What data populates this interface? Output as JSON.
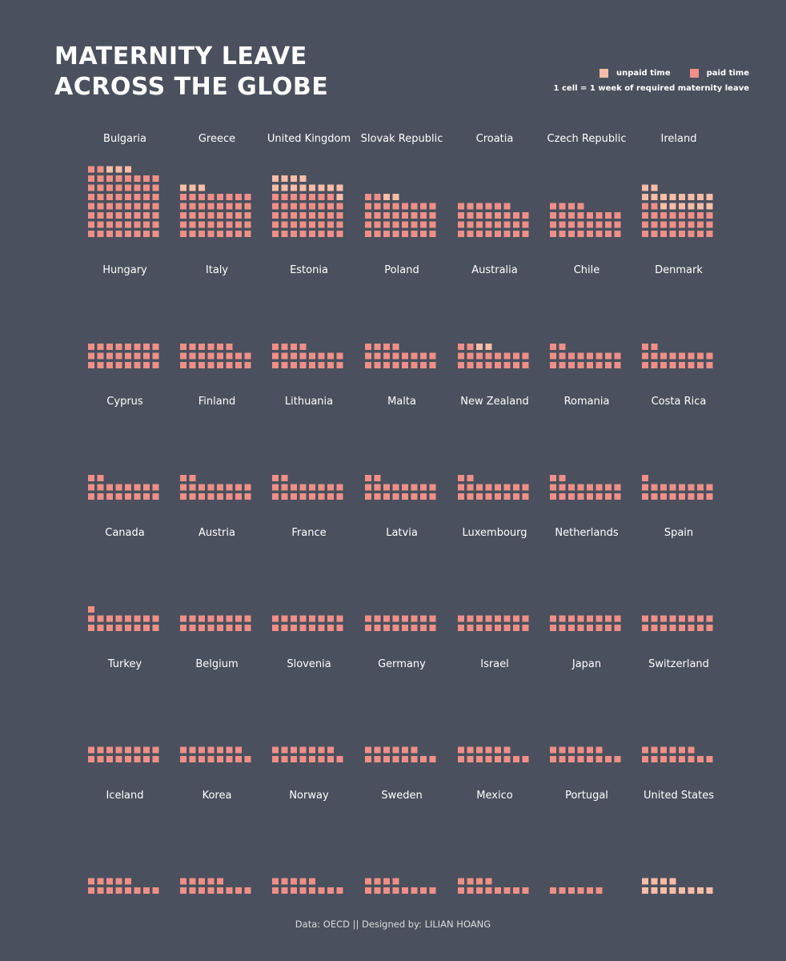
{
  "title": {
    "line1": "MATERNITY LEAVE",
    "line2": "ACROSS THE GLOBE"
  },
  "legend": {
    "unpaid_label": "unpaid time",
    "paid_label": "paid time",
    "note": "1 cell = 1 week of required maternity leave"
  },
  "colors": {
    "background": "#4a505d",
    "unpaid": "#f9bca6",
    "paid": "#ef8f87"
  },
  "chart_data": {
    "type": "waffle",
    "unit": "1 cell = 1 week of required maternity leave",
    "countries": [
      {
        "name": "Bulgaria",
        "paid": 58,
        "unpaid": 3
      },
      {
        "name": "Greece",
        "paid": 40,
        "unpaid": 3
      },
      {
        "name": "United Kingdom",
        "paid": 39,
        "unpaid": 13
      },
      {
        "name": "Slovak Republic",
        "paid": 34,
        "unpaid": 2
      },
      {
        "name": "Croatia",
        "paid": 30,
        "unpaid": 0
      },
      {
        "name": "Czech Republic",
        "paid": 28,
        "unpaid": 0
      },
      {
        "name": "Ireland",
        "paid": 26,
        "unpaid": 16
      },
      {
        "name": "Hungary",
        "paid": 24,
        "unpaid": 0
      },
      {
        "name": "Italy",
        "paid": 22,
        "unpaid": 0
      },
      {
        "name": "Estonia",
        "paid": 20,
        "unpaid": 0
      },
      {
        "name": "Poland",
        "paid": 20,
        "unpaid": 0
      },
      {
        "name": "Australia",
        "paid": 18,
        "unpaid": 2
      },
      {
        "name": "Chile",
        "paid": 18,
        "unpaid": 0
      },
      {
        "name": "Denmark",
        "paid": 18,
        "unpaid": 0
      },
      {
        "name": "Cyprus",
        "paid": 18,
        "unpaid": 0
      },
      {
        "name": "Finland",
        "paid": 18,
        "unpaid": 0
      },
      {
        "name": "Lithuania",
        "paid": 18,
        "unpaid": 0
      },
      {
        "name": "Malta",
        "paid": 18,
        "unpaid": 0
      },
      {
        "name": "New Zealand",
        "paid": 18,
        "unpaid": 0
      },
      {
        "name": "Romania",
        "paid": 18,
        "unpaid": 0
      },
      {
        "name": "Costa Rica",
        "paid": 17,
        "unpaid": 0
      },
      {
        "name": "Canada",
        "paid": 17,
        "unpaid": 0
      },
      {
        "name": "Austria",
        "paid": 16,
        "unpaid": 0
      },
      {
        "name": "France",
        "paid": 16,
        "unpaid": 0
      },
      {
        "name": "Latvia",
        "paid": 16,
        "unpaid": 0
      },
      {
        "name": "Luxembourg",
        "paid": 16,
        "unpaid": 0
      },
      {
        "name": "Netherlands",
        "paid": 16,
        "unpaid": 0
      },
      {
        "name": "Spain",
        "paid": 16,
        "unpaid": 0
      },
      {
        "name": "Turkey",
        "paid": 16,
        "unpaid": 0
      },
      {
        "name": "Belgium",
        "paid": 15,
        "unpaid": 0
      },
      {
        "name": "Slovenia",
        "paid": 15,
        "unpaid": 0
      },
      {
        "name": "Germany",
        "paid": 14,
        "unpaid": 0
      },
      {
        "name": "Israel",
        "paid": 14,
        "unpaid": 0
      },
      {
        "name": "Japan",
        "paid": 14,
        "unpaid": 0
      },
      {
        "name": "Switzerland",
        "paid": 14,
        "unpaid": 0
      },
      {
        "name": "Iceland",
        "paid": 13,
        "unpaid": 0
      },
      {
        "name": "Korea",
        "paid": 13,
        "unpaid": 0
      },
      {
        "name": "Norway",
        "paid": 13,
        "unpaid": 0
      },
      {
        "name": "Sweden",
        "paid": 12,
        "unpaid": 0
      },
      {
        "name": "Mexico",
        "paid": 12,
        "unpaid": 0
      },
      {
        "name": "Portugal",
        "paid": 6,
        "unpaid": 0
      },
      {
        "name": "United States",
        "paid": 0,
        "unpaid": 12
      }
    ]
  },
  "footer": {
    "text": "Data: OECD  ||  Designed by: LILIAN HOANG"
  }
}
